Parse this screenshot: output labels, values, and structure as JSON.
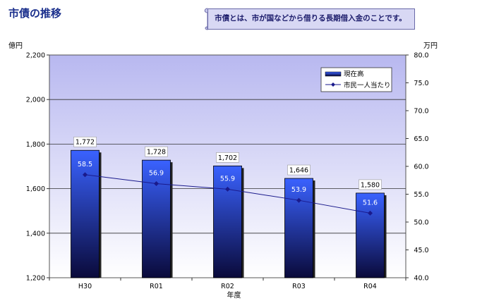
{
  "page_title": "市債の推移",
  "note": "市債とは、市が国などから借りる長期借入金のことです。",
  "left_unit": "億円",
  "right_unit": "万円",
  "chart_data": {
    "type": "bar",
    "categories": [
      "H30",
      "R01",
      "R02",
      "R03",
      "R04"
    ],
    "xlabel": "年度",
    "ylim": [
      1200,
      2200
    ],
    "y_ticks": [
      "1,200",
      "1,400",
      "1,600",
      "1,800",
      "2,000",
      "2,200"
    ],
    "y2lim": [
      40.0,
      80.0
    ],
    "y2_ticks": [
      "40.0",
      "45.0",
      "50.0",
      "55.0",
      "60.0",
      "65.0",
      "70.0",
      "75.0",
      "80.0"
    ],
    "grid": true,
    "legend_position": "top-right",
    "series": [
      {
        "name": "現在高",
        "type": "bar",
        "axis": "left",
        "values": [
          1772,
          1728,
          1702,
          1646,
          1580
        ],
        "labels": [
          "1,772",
          "1,728",
          "1,702",
          "1,646",
          "1,580"
        ]
      },
      {
        "name": "市民一人当たり",
        "type": "line",
        "axis": "right",
        "values": [
          58.5,
          56.9,
          55.9,
          53.9,
          51.6
        ],
        "labels": [
          "58.5",
          "56.9",
          "55.9",
          "53.9",
          "51.6"
        ]
      }
    ],
    "colors": {
      "bar_top": "#3a62ff",
      "bar_bottom": "#0a0a3a",
      "line": "#1a1a8c",
      "plot_top": "#b8b8f0",
      "plot_bottom": "#ffffff"
    }
  }
}
